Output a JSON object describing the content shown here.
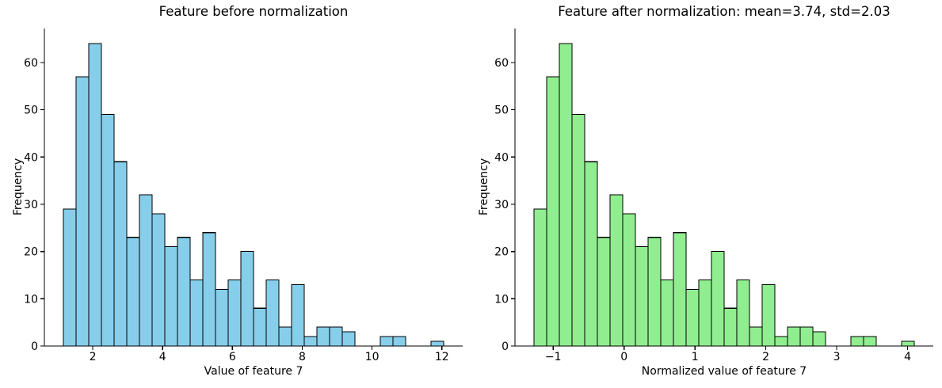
{
  "figure": {
    "background": "#ffffff",
    "text_color": "#000000"
  },
  "chart_data": [
    {
      "type": "histogram",
      "title": "Feature before normalization",
      "xlabel": "Value of feature 7",
      "ylabel": "Frequency",
      "bar_color": "#87CEEB",
      "edge_color": "#000000",
      "bin_start": 1.16,
      "bin_width": 0.363,
      "counts": [
        29,
        57,
        64,
        49,
        39,
        23,
        32,
        28,
        21,
        23,
        14,
        24,
        12,
        14,
        20,
        8,
        14,
        4,
        13,
        2,
        4,
        4,
        3,
        0,
        0,
        2,
        2,
        0,
        0,
        1
      ],
      "total_samples": 506,
      "xlim": [
        0.6155,
        12.5945
      ],
      "ylim": [
        0,
        67.2
      ],
      "xticks": [
        2,
        4,
        6,
        8,
        10,
        12
      ],
      "yticks": [
        0,
        10,
        20,
        30,
        40,
        50,
        60
      ],
      "grid": false,
      "legend": null
    },
    {
      "type": "histogram",
      "title": "Feature after normalization: mean=3.74, std=2.03",
      "xlabel": "Normalized value of feature 7",
      "ylabel": "Frequency",
      "bar_color": "#90EE90",
      "edge_color": "#000000",
      "bin_start": -1.271,
      "bin_width": 0.1788,
      "counts": [
        29,
        57,
        64,
        49,
        39,
        23,
        32,
        28,
        21,
        23,
        14,
        24,
        12,
        14,
        20,
        8,
        14,
        4,
        13,
        2,
        4,
        4,
        3,
        0,
        0,
        2,
        2,
        0,
        0,
        1
      ],
      "total_samples": 506,
      "xlim": [
        -1.5392,
        4.3628
      ],
      "ylim": [
        0,
        67.2
      ],
      "xticks": [
        -1,
        0,
        1,
        2,
        3,
        4
      ],
      "yticks": [
        0,
        10,
        20,
        30,
        40,
        50,
        60
      ],
      "grid": false,
      "legend": null
    }
  ]
}
